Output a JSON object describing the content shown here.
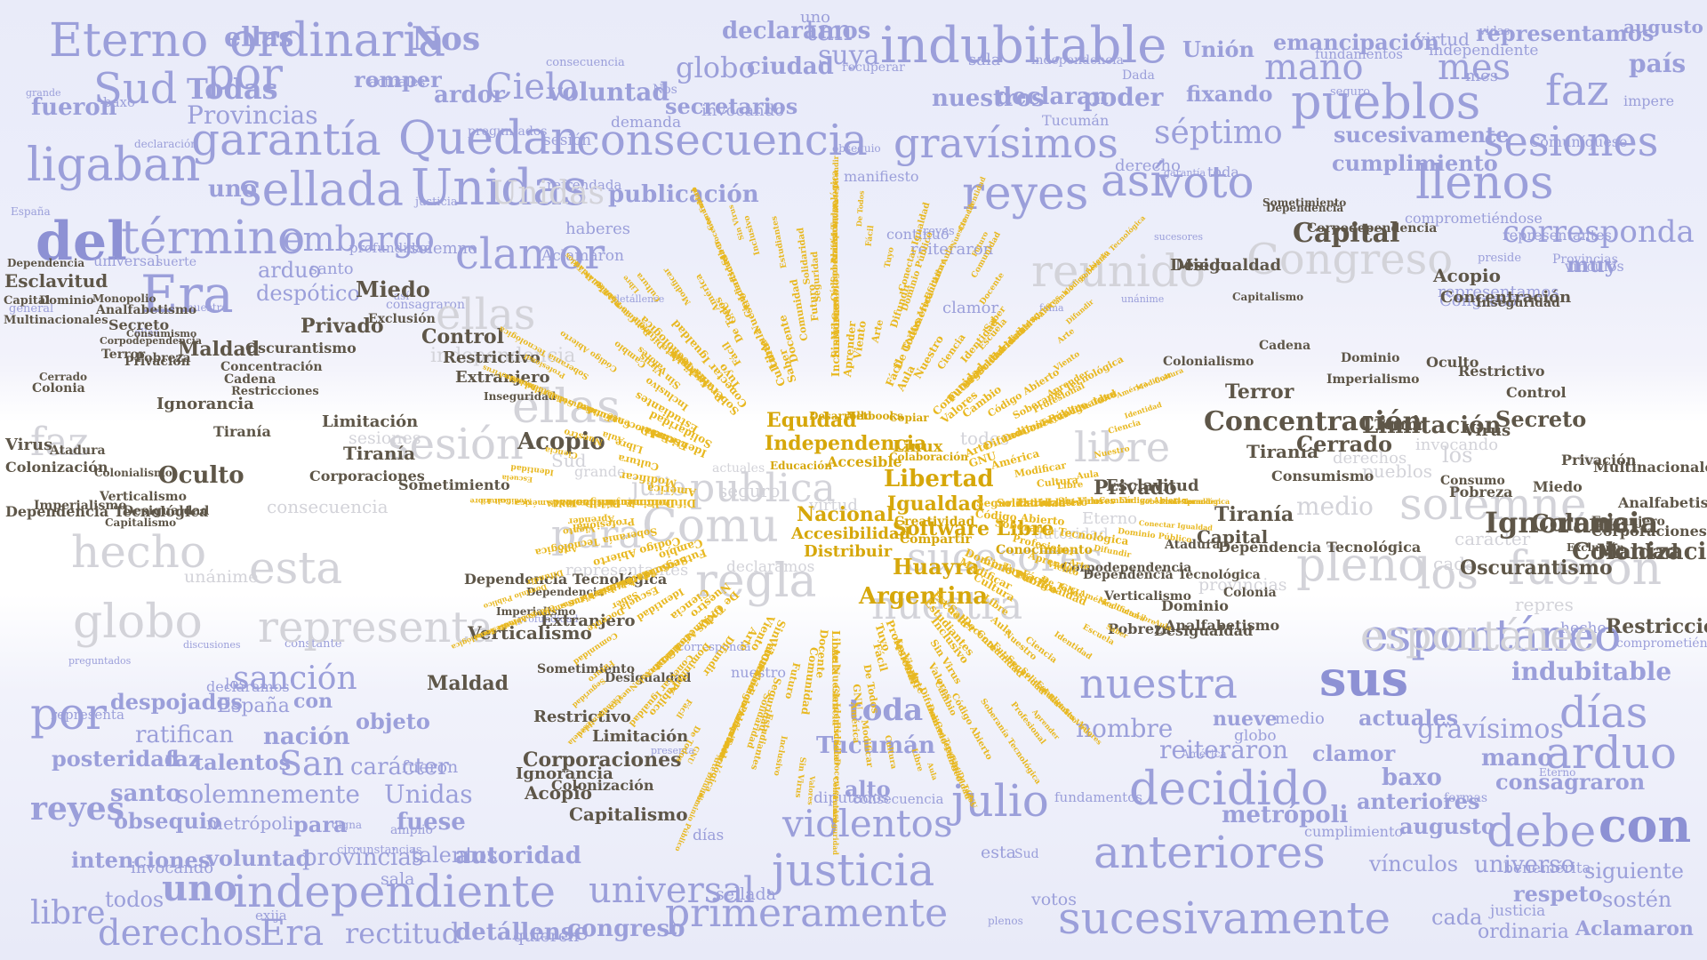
{
  "colors": {
    "blue": "#9b9fda",
    "grey": "#d3d3d9",
    "brown": "#5e5648",
    "gold": "#e8b820"
  },
  "top_band": [
    "Eterno",
    "ordinaria",
    "Nos",
    "indubitable",
    "ellas",
    "por",
    "Sud",
    "Todas",
    "garantía",
    "Quedan",
    "consecuencia",
    "gravísimos",
    "ligaban",
    "sellada",
    "Unidas",
    "del",
    "término",
    "embargo",
    "clamor",
    "Era",
    "reyes",
    "voto",
    "pueblos",
    "faz",
    "sesiones",
    "mano",
    "mes",
    "llenos",
    "séptimo",
    "Provincias",
    "declaramos",
    "tan",
    "suya",
    "romper",
    "Cielo",
    "voluntad",
    "ardor",
    "globo",
    "ciudad",
    "Unión",
    "emancipación",
    "representamos",
    "augusto",
    "país",
    "corresponda",
    "muy",
    "fixando",
    "poder",
    "nuestros",
    "declaran",
    "secretarios",
    "publicación",
    "así",
    "fueron",
    "Dada",
    "Tucumán",
    "despótico",
    "arduo",
    "santo",
    "suerte",
    "uno",
    "cumplimiento",
    "sucesivamente",
    "virtud",
    "vínculos",
    "impere",
    "general",
    "profundidad",
    "Aclamaron",
    "continuó",
    "seguro",
    "sucesores",
    "derecho",
    "fundamentos",
    "representantes",
    "clamor",
    "demanda",
    "consecuencia",
    "invocando",
    "reiteraron",
    "baxo",
    "obsequio",
    "vidas",
    "haberes",
    "recuperar",
    "preguntados",
    "refrendada",
    "consagraron",
    "comprometiéndose",
    "manifiesto",
    "Comuníquese",
    "justicia",
    "sesión",
    "independiente",
    "declaración",
    "ellas",
    "independencia",
    "sala",
    "Congreso",
    "preside",
    "grande",
    "España",
    "toda",
    "así",
    "detállense",
    "uno",
    "fama",
    "mes",
    "reyes",
    "actuales",
    "universal",
    "garantía",
    "nuestra",
    "unánime",
    "representamos",
    "Provincias",
    "solemne",
    "Nos"
  ],
  "bottom_band": [
    "por",
    "sanción",
    "despojados",
    "España",
    "con",
    "objeto",
    "ratifican",
    "nación",
    "posteridad",
    "faz",
    "talentos",
    "San",
    "carácter",
    "santo",
    "solemnemente",
    "Unidas",
    "reyes",
    "obsequio",
    "metrópoli",
    "para",
    "fuese",
    "talentos",
    "voluntad",
    "provincias",
    "autoridad",
    "intenciones",
    "libre",
    "todos",
    "uno",
    "independiente",
    "derechos",
    "Era",
    "rectitud",
    "detállense",
    "congreso",
    "universal",
    "primeramente",
    "justicia",
    "violentos",
    "julio",
    "decidido",
    "anteriores",
    "sucesivamente",
    "debe",
    "con",
    "arduo",
    "días",
    "gravísimos",
    "indubitable",
    "espontáneo",
    "sus",
    "nuestra",
    "nombre",
    "actuales",
    "nueve",
    "medio",
    "reiteraron",
    "clamor",
    "baxo",
    "mano",
    "consagraron",
    "anteriores",
    "augusto",
    "vínculos",
    "universo",
    "siguiente",
    "respeto",
    "sostén",
    "cada",
    "ordinaria",
    "Aclamaron",
    "Tucumán",
    "alto",
    "toda",
    "metrópoli",
    "formas",
    "Sud",
    "América",
    "quieren",
    "votos",
    "digna",
    "diputados",
    "Eterno",
    "nuestro",
    "consecuencia",
    "globo",
    "representa",
    "circunstancias",
    "amplio",
    "invocando",
    "justicia",
    "hecho",
    "esta",
    "preguntados",
    "discusiones",
    "plenos",
    "los",
    "fueron",
    "días",
    "presenta",
    "sala",
    "exija",
    "declaramos",
    "constante",
    "fundamentos",
    "comprometiéndose",
    "profundidad",
    "corresponda",
    "benemérita",
    "sellada",
    "cumplimiento"
  ],
  "white_band_grey": [
    "hecho",
    "esta",
    "globo",
    "representa",
    "Comu",
    "para",
    "regla",
    "julio",
    "publica",
    "sesión",
    "ellas",
    "solemne",
    "medio",
    "pleno",
    "los",
    "fueron",
    "espontáneo",
    "faz",
    "independencia",
    "nuestra",
    "sucesores",
    "reunido",
    "Congreso",
    "Unidas",
    "ellas",
    "libre",
    "los",
    "pueblos",
    "carácter",
    "repres",
    "consecuencia",
    "Sud",
    "grande",
    "virtud",
    "Eterno",
    "cada",
    "seguro",
    "Nos",
    "representantes",
    "provincias",
    "sesiones",
    "unánime",
    "autoridad",
    "declaramos",
    "invocando",
    "actuales",
    "todos",
    "derechos"
  ],
  "brown_words": [
    "Dependencia",
    "Esclavitud",
    "Capital",
    "Dominio",
    "Monopolio",
    "Analfabetismo",
    "Multinacionales",
    "Secreto",
    "Consumismo",
    "Miedo",
    "Privado",
    "Exclusión",
    "Corpodependencia",
    "Terror",
    "Pobreza",
    "Maldad",
    "Oscurantismo",
    "Control",
    "Restrictivo",
    "Concentración",
    "Cerrado",
    "Ignorancia",
    "Colonia",
    "Privación",
    "Cadena",
    "Restricciones",
    "Extranjero",
    "Inseguridad",
    "Limitación",
    "Tiranía",
    "Oculto",
    "Virus",
    "Colonización",
    "Colonialismo",
    "Atadura",
    "Corporaciones",
    "Acopio",
    "Verticalismo",
    "Imperialismo",
    "Capitalismo",
    "Desigualdad",
    "Sometimiento",
    "Dependencia Tecnológica",
    "Consumo",
    "Miedo"
  ],
  "sun_words": [
    "Independencia",
    "Libertad",
    "Nacional",
    "Accesibilidad",
    "Software Libre",
    "Huayra",
    "Argentina",
    "Igualdad",
    "Equidad",
    "Distribuir",
    "Linux",
    "Accesible",
    "Educación",
    "Desarrollo",
    "Creatividad",
    "Compartir",
    "Colaboración",
    "Conocimiento",
    "Netbooks",
    "Copiar",
    "Seguridad",
    "Solidaridad",
    "Estudiantes",
    "Inclusivo",
    "Sin Virus",
    "Valores",
    "Cambio",
    "Código Abierto",
    "Soberanía Tecnológica",
    "Profesional",
    "Aprender",
    "Viento",
    "Arte",
    "Difundir",
    "Dominio Público",
    "Conectar Igualdad",
    "Tuyo",
    "Fácil",
    "De Todos",
    "GNU",
    "América",
    "Modificar",
    "Cultura",
    "Libre",
    "Aula",
    "Nuestro",
    "Ciencia",
    "Identidad",
    "Escuela",
    "Saber",
    "Docente",
    "Comunidad",
    "Futuro"
  ]
}
